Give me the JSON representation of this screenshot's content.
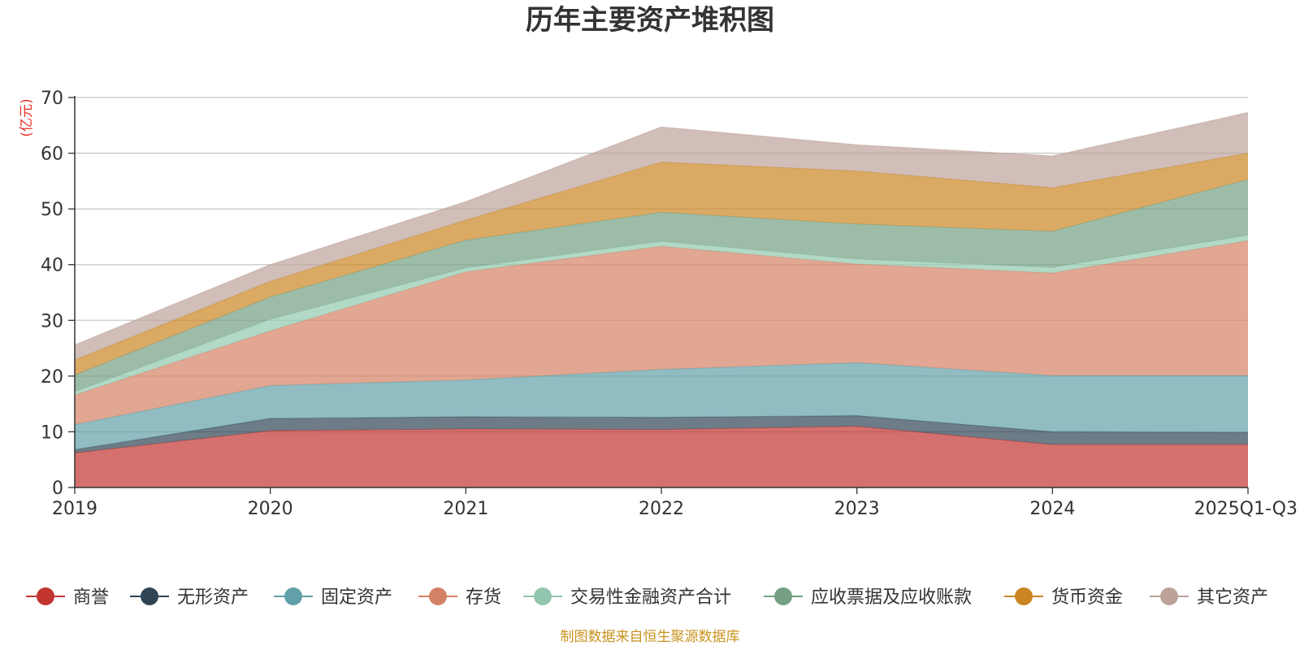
{
  "chart_data": {
    "type": "area",
    "stacked": true,
    "title": "历年主要资产堆积图",
    "ylabel": "(亿元)",
    "xlabel": "",
    "ylim": [
      0,
      70
    ],
    "yticks": [
      0,
      10,
      20,
      30,
      40,
      50,
      60,
      70
    ],
    "grid": true,
    "legend_position": "bottom",
    "categories": [
      "2019",
      "2020",
      "2021",
      "2022",
      "2023",
      "2024",
      "2025Q1-Q3"
    ],
    "series": [
      {
        "name": "商誉",
        "color": "#c23531",
        "values": [
          6.2,
          10.2,
          10.5,
          10.4,
          11.0,
          7.7,
          7.7
        ]
      },
      {
        "name": "无形资产",
        "color": "#2f4554",
        "values": [
          0.6,
          2.2,
          2.2,
          2.2,
          1.9,
          2.3,
          2.2
        ]
      },
      {
        "name": "固定资产",
        "color": "#61a0a8",
        "values": [
          4.5,
          5.9,
          6.6,
          8.6,
          9.5,
          10.1,
          10.2
        ]
      },
      {
        "name": "存货",
        "color": "#d48265",
        "values": [
          5.3,
          9.8,
          19.4,
          22.1,
          17.7,
          18.4,
          24.2
        ]
      },
      {
        "name": "交易性金融资产合计",
        "color": "#91c7ae",
        "values": [
          0.6,
          2.1,
          0.7,
          0.9,
          0.9,
          1.0,
          1.0
        ]
      },
      {
        "name": "应收票据及应收账款",
        "color": "#749f83",
        "values": [
          3.0,
          4.0,
          5.0,
          5.2,
          6.3,
          6.5,
          10.0
        ]
      },
      {
        "name": "货币资金",
        "color": "#ca8622",
        "values": [
          2.7,
          2.8,
          3.6,
          9.0,
          9.5,
          7.8,
          4.7
        ]
      },
      {
        "name": "其它资产",
        "color": "#bda29a",
        "values": [
          2.7,
          3.0,
          3.3,
          6.3,
          4.7,
          5.7,
          7.3
        ]
      }
    ],
    "source": "制图数据来自恒生聚源数据库"
  }
}
